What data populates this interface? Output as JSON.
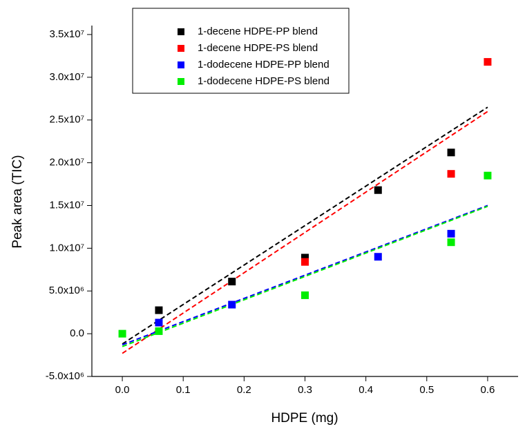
{
  "chart_data": {
    "type": "scatter",
    "x_label": "HDPE (mg)",
    "y_label": "Peak area (TIC)",
    "xlim": [
      -0.05,
      0.65
    ],
    "ylim": [
      -5000000,
      36000000
    ],
    "xticks": [
      {
        "value": 0,
        "label": "0.0"
      },
      0.1,
      0.2,
      0.3,
      0.4,
      0.5,
      0.6
    ],
    "yticks": [
      {
        "value": -5000000,
        "label": "-5.0x10⁶"
      },
      {
        "value": 0,
        "label": "0.0"
      },
      {
        "value": 5000000,
        "label": "5.0x10⁶"
      },
      {
        "value": 10000000,
        "label": "1.0x10⁷"
      },
      {
        "value": 15000000,
        "label": "1.5x10⁷"
      },
      {
        "value": 20000000,
        "label": "2.0x10⁷"
      },
      {
        "value": 25000000,
        "label": "2.5x10⁷"
      },
      {
        "value": 30000000,
        "label": "3.0x10⁷"
      },
      {
        "value": 35000000,
        "label": "3.5x10⁷"
      }
    ],
    "series": [
      {
        "name": "1-decene HDPE-PP blend",
        "color": "#000000",
        "x": [
          0.06,
          0.18,
          0.3,
          0.42,
          0.54
        ],
        "values": [
          2750000,
          6100000,
          8900000,
          16800000,
          21200000
        ],
        "trend_x": [
          0,
          0.6
        ],
        "trend_values": [
          -1200000,
          26500000
        ]
      },
      {
        "name": "1-decene HDPE-PS blend",
        "color": "#ff0000",
        "x": [
          0.3,
          0.54,
          0.6
        ],
        "values": [
          8400000,
          18700000,
          31800000
        ],
        "trend_x": [
          0,
          0.6
        ],
        "trend_values": [
          -2300000,
          26000000
        ]
      },
      {
        "name": "1-dodecene HDPE-PP blend",
        "color": "#0000ff",
        "x": [
          0.06,
          0.18,
          0.42,
          0.54
        ],
        "values": [
          1300000,
          3400000,
          9000000,
          11700000
        ],
        "trend_x": [
          0,
          0.6
        ],
        "trend_values": [
          -1300000,
          15000000
        ]
      },
      {
        "name": "1-dodecene HDPE-PS blend",
        "color": "#00ee00",
        "x": [
          0,
          0.06,
          0.3,
          0.54,
          0.6
        ],
        "values": [
          0,
          300000,
          4500000,
          10700000,
          18500000
        ],
        "trend_x": [
          0,
          0.6
        ],
        "trend_values": [
          -1500000,
          14900000
        ]
      }
    ]
  }
}
